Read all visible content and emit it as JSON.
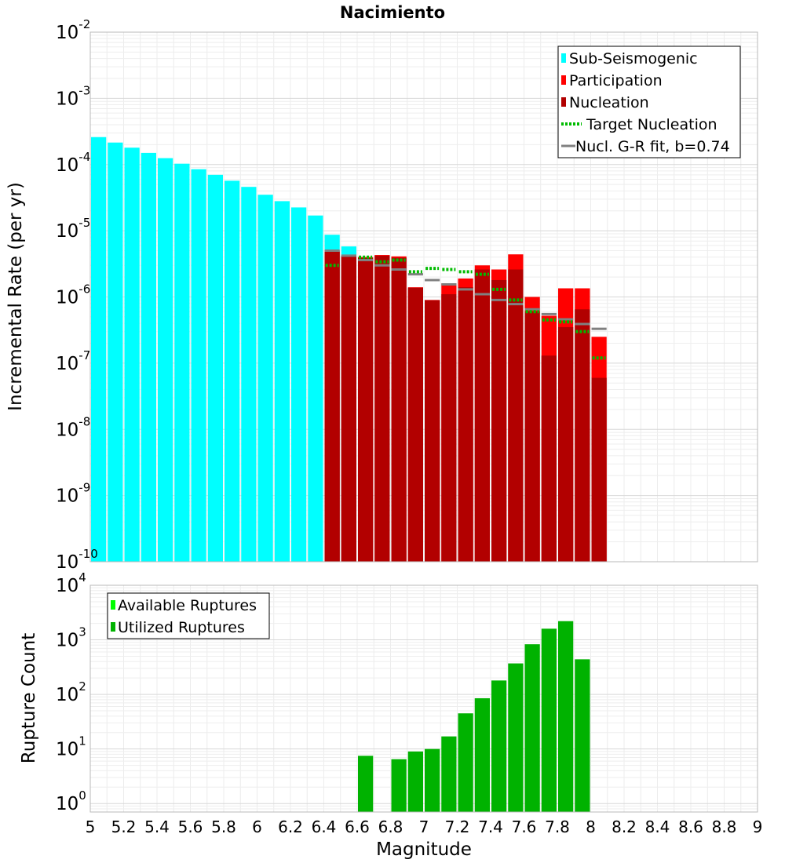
{
  "chart_data": [
    {
      "type": "bar",
      "title": "Nacimiento",
      "xlabel": "",
      "ylabel": "Incremental Rate (per yr)",
      "y_scale": "log",
      "ylim": [
        1e-10,
        0.01
      ],
      "y_ticks": [
        {
          "base": "10",
          "exp": "-10"
        },
        {
          "base": "10",
          "exp": "-9"
        },
        {
          "base": "10",
          "exp": "-8"
        },
        {
          "base": "10",
          "exp": "-7"
        },
        {
          "base": "10",
          "exp": "-6"
        },
        {
          "base": "10",
          "exp": "-5"
        },
        {
          "base": "10",
          "exp": "-4"
        },
        {
          "base": "10",
          "exp": "-3"
        },
        {
          "base": "10",
          "exp": "-2"
        }
      ],
      "xlim": [
        5,
        9
      ],
      "bin_width": 0.1,
      "grid": true,
      "legend_position": "top-right",
      "legend": [
        "Sub-Seismogenic",
        "Participation",
        "Nucleation",
        "Target Nucleation",
        "Nucl. G-R fit, b=0.74"
      ],
      "colors": {
        "sub_seismogenic": "#00ffff",
        "participation": "#ff0000",
        "nucleation": "#b20000",
        "target_nucleation": "#00bb00",
        "gr_fit": "#808080"
      },
      "series": [
        {
          "name": "Sub-Seismogenic",
          "x": [
            5.05,
            5.15,
            5.25,
            5.35,
            5.45,
            5.55,
            5.65,
            5.75,
            5.85,
            5.95,
            6.05,
            6.15,
            6.25,
            6.35,
            6.45,
            6.55
          ],
          "values": [
            0.00026,
            0.000215,
            0.00018,
            0.00015,
            0.000125,
            0.000103,
            8.5e-05,
            7e-05,
            5.7e-05,
            4.6e-05,
            3.5e-05,
            2.8e-05,
            2.25e-05,
            1.7e-05,
            8.7e-06,
            5.8e-06
          ]
        },
        {
          "name": "Participation",
          "x": [
            6.45,
            6.55,
            6.65,
            6.75,
            6.85,
            6.95,
            7.05,
            7.15,
            7.25,
            7.35,
            7.45,
            7.55,
            7.65,
            7.75,
            7.85,
            7.95,
            8.05
          ],
          "values": [
            5e-06,
            4.2e-06,
            4e-06,
            4.3e-06,
            4.1e-06,
            1.4e-06,
            9e-07,
            1.6e-06,
            1.9e-06,
            3e-06,
            2.6e-06,
            4.4e-06,
            1e-06,
            5.2e-07,
            1.35e-06,
            1.35e-06,
            2.5e-07
          ]
        },
        {
          "name": "Nucleation",
          "x": [
            6.45,
            6.55,
            6.65,
            6.75,
            6.85,
            6.95,
            7.05,
            7.15,
            7.25,
            7.35,
            7.45,
            7.55,
            7.65,
            7.75,
            7.85,
            7.95,
            8.05
          ],
          "values": [
            4.8e-06,
            4.2e-06,
            3.9e-06,
            4.2e-06,
            3.9e-06,
            1.38e-06,
            8.9e-07,
            1.1e-06,
            1.4e-06,
            2.6e-06,
            1.8e-06,
            2.6e-06,
            6e-07,
            1.3e-07,
            3.5e-07,
            6.5e-07,
            6e-08
          ]
        },
        {
          "name": "Target Nucleation",
          "x": [
            6.45,
            6.65,
            6.75,
            6.85,
            6.95,
            7.05,
            7.15,
            7.25,
            7.35,
            7.45,
            7.55,
            7.65,
            7.75,
            7.85,
            7.95,
            8.05
          ],
          "values": [
            3e-06,
            4e-06,
            3.4e-06,
            3.6e-06,
            2.4e-06,
            2.7e-06,
            2.6e-06,
            2.4e-06,
            2.2e-06,
            1.3e-06,
            9e-07,
            6e-07,
            4.5e-07,
            4.2e-07,
            3e-07,
            1.2e-07
          ]
        },
        {
          "name": "Nucl. G-R fit, b=0.74",
          "x": [
            6.45,
            6.55,
            6.65,
            6.75,
            6.85,
            6.95,
            7.05,
            7.15,
            7.25,
            7.35,
            7.45,
            7.55,
            7.65,
            7.75,
            7.85,
            7.95,
            8.05
          ],
          "values": [
            5e-06,
            4.2e-06,
            3.6e-06,
            3e-06,
            2.6e-06,
            2.2e-06,
            1.8e-06,
            1.55e-06,
            1.3e-06,
            1.1e-06,
            9e-07,
            7.8e-07,
            6.5e-07,
            5.5e-07,
            4.6e-07,
            3.9e-07,
            3.3e-07
          ]
        }
      ]
    },
    {
      "type": "bar",
      "title": "",
      "xlabel": "Magnitude",
      "ylabel": "Rupture Count",
      "y_scale": "log",
      "ylim": [
        0.7,
        10000
      ],
      "y_ticks": [
        {
          "base": "10",
          "exp": "0"
        },
        {
          "base": "10",
          "exp": "1"
        },
        {
          "base": "10",
          "exp": "2"
        },
        {
          "base": "10",
          "exp": "3"
        },
        {
          "base": "10",
          "exp": "4"
        }
      ],
      "xlim": [
        5,
        9
      ],
      "x_ticks": [
        "5",
        "5.2",
        "5.4",
        "5.6",
        "5.8",
        "6",
        "6.2",
        "6.4",
        "6.6",
        "6.8",
        "7",
        "7.2",
        "7.4",
        "7.6",
        "7.8",
        "8",
        "8.2",
        "8.4",
        "8.6",
        "8.8",
        "9"
      ],
      "bin_width": 0.1,
      "grid": true,
      "legend_position": "top-left",
      "legend": [
        "Available Ruptures",
        "Utilized Ruptures"
      ],
      "colors": {
        "available": "#00ff00",
        "utilized": "#00b200"
      },
      "series": [
        {
          "name": "Utilized Ruptures",
          "x": [
            6.65,
            6.85,
            6.95,
            7.05,
            7.15,
            7.25,
            7.35,
            7.45,
            7.55,
            7.65,
            7.75,
            7.85,
            7.95
          ],
          "values": [
            7.5,
            6.5,
            9,
            10,
            17,
            45,
            85,
            180,
            370,
            830,
            1600,
            2200,
            440
          ]
        }
      ]
    }
  ]
}
